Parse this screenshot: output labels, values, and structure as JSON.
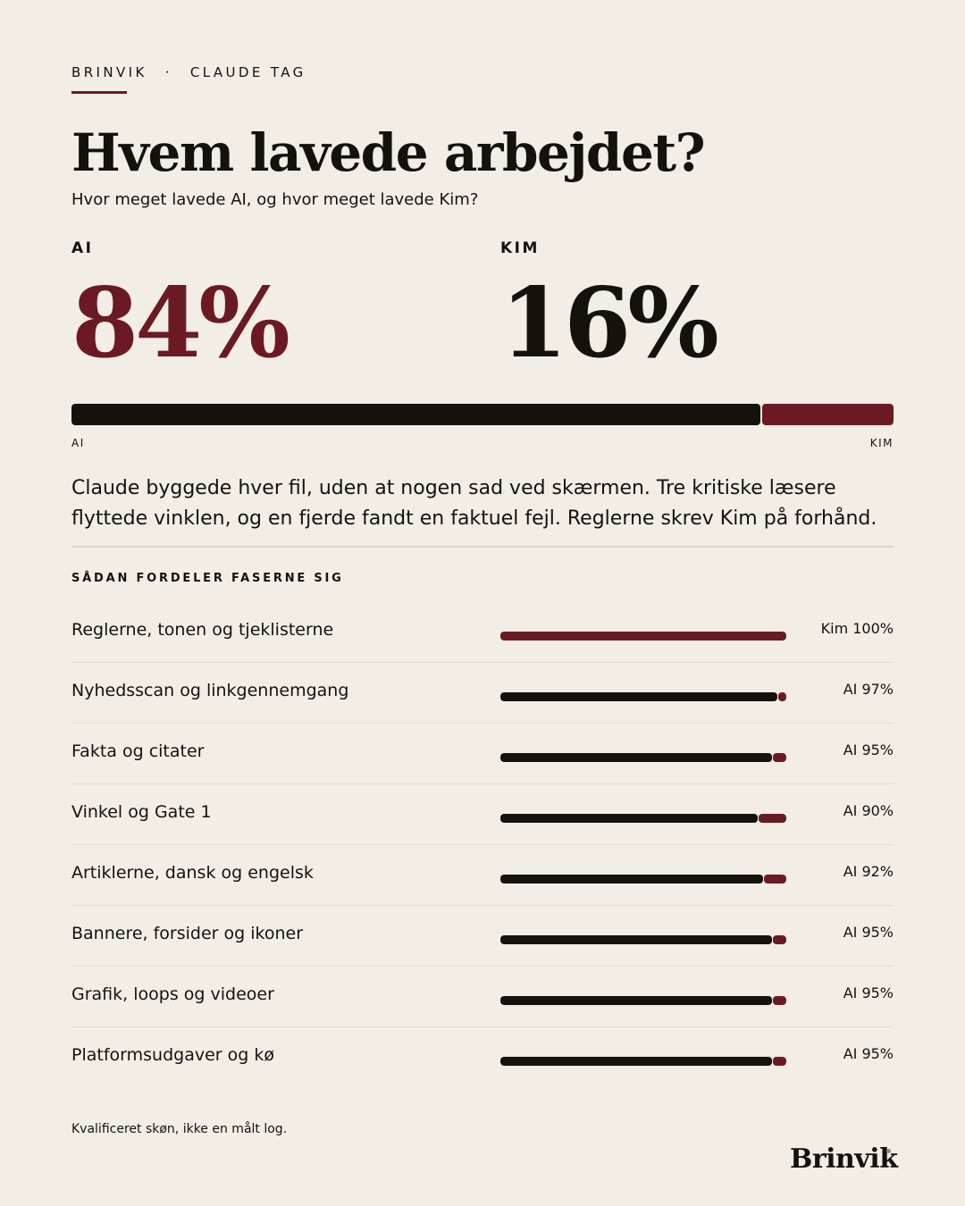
{
  "header": {
    "brand": "BRINVIK",
    "separator": "·",
    "section": "CLAUDE TAG"
  },
  "title": "Hvem lavede arbejdet?",
  "subtitle": "Hvor meget lavede AI, og hvor meget lavede Kim?",
  "colors": {
    "ai": "#15120e",
    "kim": "#6b1a24",
    "background": "#f2ede5"
  },
  "chart_data": [
    {
      "type": "bar",
      "orientation": "horizontal-stacked",
      "categories": [
        "AI",
        "KIM"
      ],
      "values": [
        84,
        16
      ],
      "unit": "%",
      "labels": {
        "ai_big": "AI",
        "kim_big": "KIM",
        "ai_value": "84%",
        "kim_value": "16%",
        "axis_left": "AI",
        "axis_right": "KIM"
      }
    },
    {
      "type": "bar",
      "orientation": "horizontal-stacked",
      "title": "SÅDAN FORDELER FASERNE SIG",
      "categories": [
        "Reglerne, tonen og tjeklisterne",
        "Nyhedsscan og linkgennemgang",
        "Fakta og citater",
        "Vinkel og Gate 1",
        "Artiklerne, dansk og engelsk",
        "Bannere, forsider og ikoner",
        "Grafik, loops og videoer",
        "Platformsudgaver og kø"
      ],
      "series": [
        {
          "name": "AI",
          "values": [
            0,
            97,
            95,
            90,
            92,
            95,
            95,
            95
          ]
        },
        {
          "name": "Kim",
          "values": [
            100,
            3,
            5,
            10,
            8,
            5,
            5,
            5
          ]
        }
      ],
      "value_labels": [
        "Kim 100%",
        "AI 97%",
        "AI 95%",
        "AI 90%",
        "AI 92%",
        "AI 95%",
        "AI 95%",
        "AI 95%"
      ]
    }
  ],
  "body": "Claude byggede hver fil, uden at nogen sad ved skærmen. Tre kritiske læsere flyttede vinklen, og en fjerde fandt en faktuel fejl. Reglerne skrev Kim på forhånd.",
  "footnote": "Kvalificeret skøn, ikke en målt log.",
  "footer_brand": "Brinvik"
}
